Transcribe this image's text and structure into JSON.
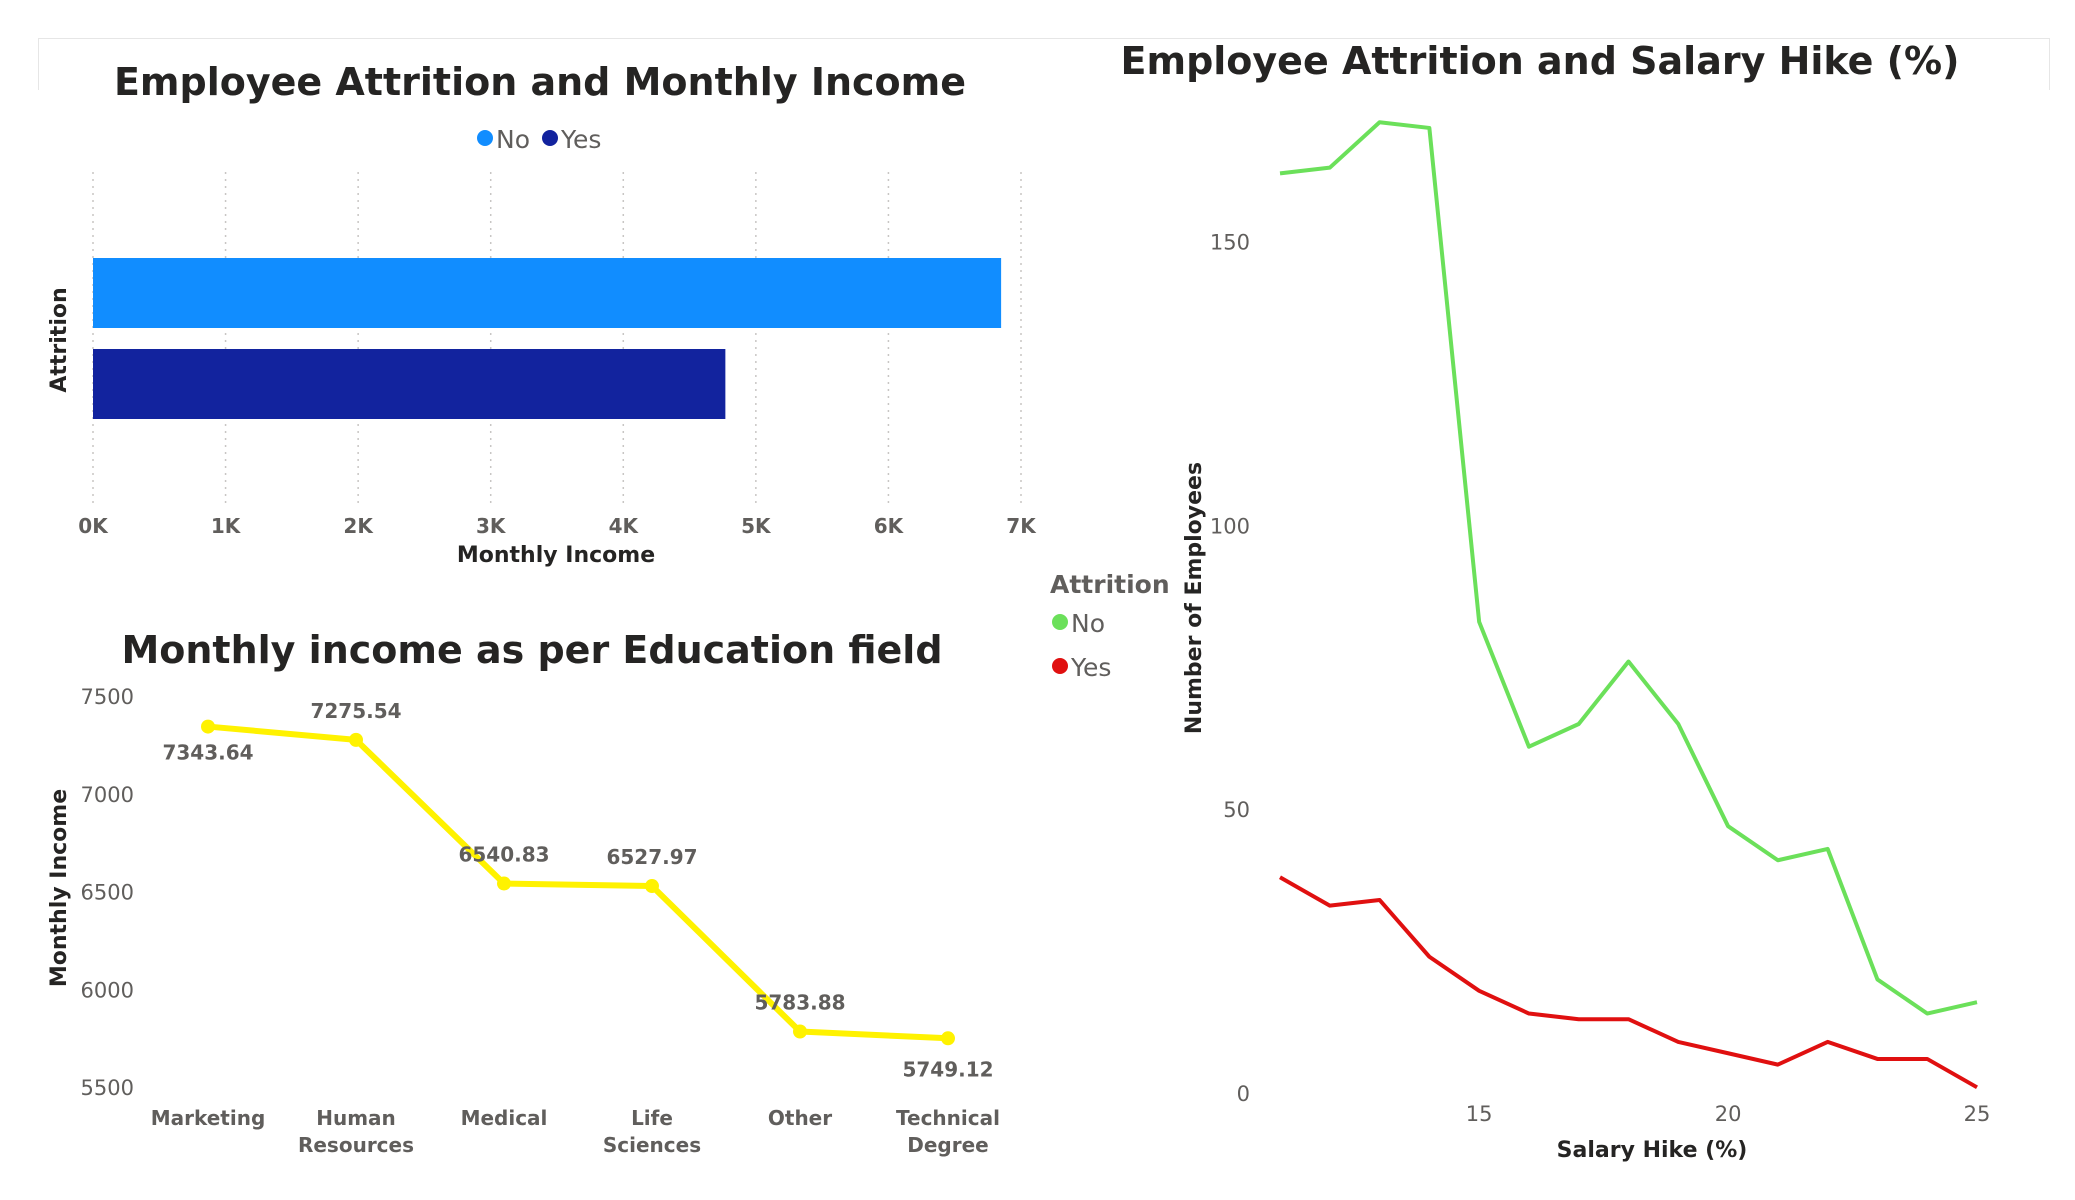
{
  "colors": {
    "income_no": "#118DFF",
    "income_yes": "#12239E",
    "education_line": "#FFF200",
    "hike_no": "#6BE05A",
    "hike_yes": "#E01010",
    "title": "#252423",
    "axis_text": "#605E5C"
  },
  "chart_data": [
    {
      "id": "income",
      "type": "bar",
      "orientation": "horizontal",
      "title": "Employee Attrition and Monthly Income",
      "xlabel": "Monthly Income",
      "ylabel": "Attrition",
      "xlim": [
        0,
        7000
      ],
      "xticks": [
        0,
        1000,
        2000,
        3000,
        4000,
        5000,
        6000,
        7000
      ],
      "xtick_labels": [
        "0K",
        "1K",
        "2K",
        "3K",
        "4K",
        "5K",
        "6K",
        "7K"
      ],
      "grid": "vertical dotted",
      "legend_position": "top-center",
      "series": [
        {
          "name": "No",
          "values": [
            6850
          ]
        },
        {
          "name": "Yes",
          "values": [
            4770
          ]
        }
      ]
    },
    {
      "id": "education",
      "type": "line",
      "title": "Monthly income as per Education field",
      "xlabel": "",
      "ylabel": "Monthly Income",
      "ylim": [
        5500,
        7500
      ],
      "yticks": [
        5500,
        6000,
        6500,
        7000,
        7500
      ],
      "categories": [
        "Marketing",
        "Human Resources",
        "Medical",
        "Life Sciences",
        "Other",
        "Technical Degree"
      ],
      "category_lines": [
        [
          "Marketing"
        ],
        [
          "Human",
          "Resources"
        ],
        [
          "Medical"
        ],
        [
          "Life",
          "Sciences"
        ],
        [
          "Other"
        ],
        [
          "Technical",
          "Degree"
        ]
      ],
      "values": [
        7343.64,
        7275.54,
        6540.83,
        6527.97,
        5783.88,
        5749.12
      ],
      "data_labels": [
        "7343.64",
        "7275.54",
        "6540.83",
        "6527.97",
        "5783.88",
        "5749.12"
      ]
    },
    {
      "id": "hike",
      "type": "line",
      "title": "Employee Attrition and Salary Hike (%)",
      "xlabel": "Salary Hike (%)",
      "ylabel": "Number of Employees",
      "xlim": [
        11,
        25
      ],
      "ylim": [
        0,
        170
      ],
      "xticks": [
        15,
        20,
        25
      ],
      "yticks": [
        0,
        50,
        100,
        150
      ],
      "legend_title": "Attrition",
      "legend_position": "left",
      "x": [
        11,
        12,
        13,
        14,
        15,
        16,
        17,
        18,
        19,
        20,
        21,
        22,
        23,
        24,
        25
      ],
      "series": [
        {
          "name": "No",
          "values": [
            162,
            163,
            171,
            170,
            83,
            61,
            65,
            76,
            65,
            47,
            41,
            43,
            20,
            14,
            16
          ]
        },
        {
          "name": "Yes",
          "values": [
            38,
            33,
            34,
            24,
            18,
            14,
            13,
            13,
            9,
            7,
            5,
            9,
            6,
            6,
            1
          ]
        }
      ]
    }
  ]
}
